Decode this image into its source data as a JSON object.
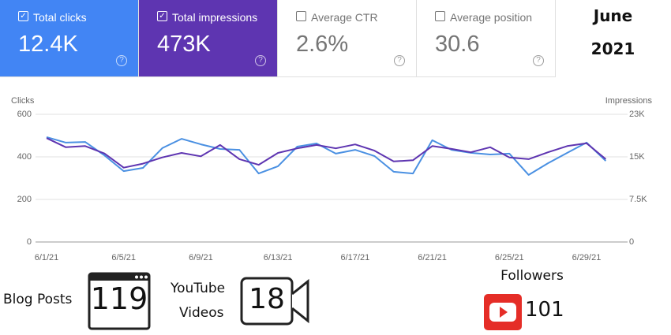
{
  "chart_data": {
    "type": "line",
    "ylabel": "Clicks",
    "y2label": "Impressions",
    "categories": [
      "6/1/21",
      null,
      null,
      null,
      "6/5/21",
      null,
      null,
      null,
      "6/9/21",
      null,
      null,
      null,
      "6/13/21",
      null,
      null,
      null,
      "6/17/21",
      null,
      null,
      null,
      "6/21/21",
      null,
      null,
      null,
      "6/25/21",
      null,
      null,
      null,
      "6/29/21",
      null
    ],
    "series": [
      {
        "name": "Total clicks",
        "color": "#4a90e2",
        "axis": "y",
        "values": [
          493,
          467,
          470,
          407,
          333,
          348,
          441,
          485,
          459,
          437,
          433,
          322,
          356,
          448,
          463,
          415,
          433,
          404,
          330,
          322,
          478,
          433,
          419,
          411,
          415,
          315,
          370,
          419,
          467,
          381
        ]
      },
      {
        "name": "Total impressions",
        "color": "#5e35b1",
        "axis": "y2",
        "values": [
          18300,
          16700,
          16900,
          15600,
          13100,
          13800,
          14900,
          15700,
          15100,
          17100,
          14600,
          13600,
          15700,
          16500,
          17100,
          16500,
          17200,
          16100,
          14200,
          14400,
          16900,
          16400,
          15800,
          16700,
          14900,
          14600,
          15800,
          16900,
          17400,
          14600
        ]
      }
    ],
    "ylim": [
      0,
      600
    ],
    "yticks": [
      0,
      200,
      400,
      600
    ],
    "y2lim": [
      0,
      22500
    ],
    "y2ticks": [
      0,
      {
        "value": 7500,
        "label": "7.5K"
      },
      {
        "value": 15000,
        "label": "15K"
      },
      {
        "value": 22500,
        "label": "23K"
      }
    ],
    "grid": true
  },
  "cards": [
    {
      "value": "12.4K",
      "bg": "#4285f4",
      "fg": "#ffffff"
    },
    {
      "value": "473K",
      "bg": "#5e35b1",
      "fg": "#ffffff"
    },
    {
      "label": "Average CTR",
      "value": "2.6%",
      "bg": "#ffffff",
      "fg": "#757575"
    },
    {
      "label": "Average position",
      "value": "30.6",
      "bg": "#ffffff",
      "fg": "#757575"
    }
  ],
  "period": {
    "month": "June",
    "year": "2021"
  },
  "stats": {
    "blog_label": "Blog Posts",
    "blog_count": "119",
    "video_label_1": "YouTube",
    "video_label_2": "Videos",
    "video_count": "18",
    "followers_label": "Followers",
    "followers_count": "101"
  }
}
